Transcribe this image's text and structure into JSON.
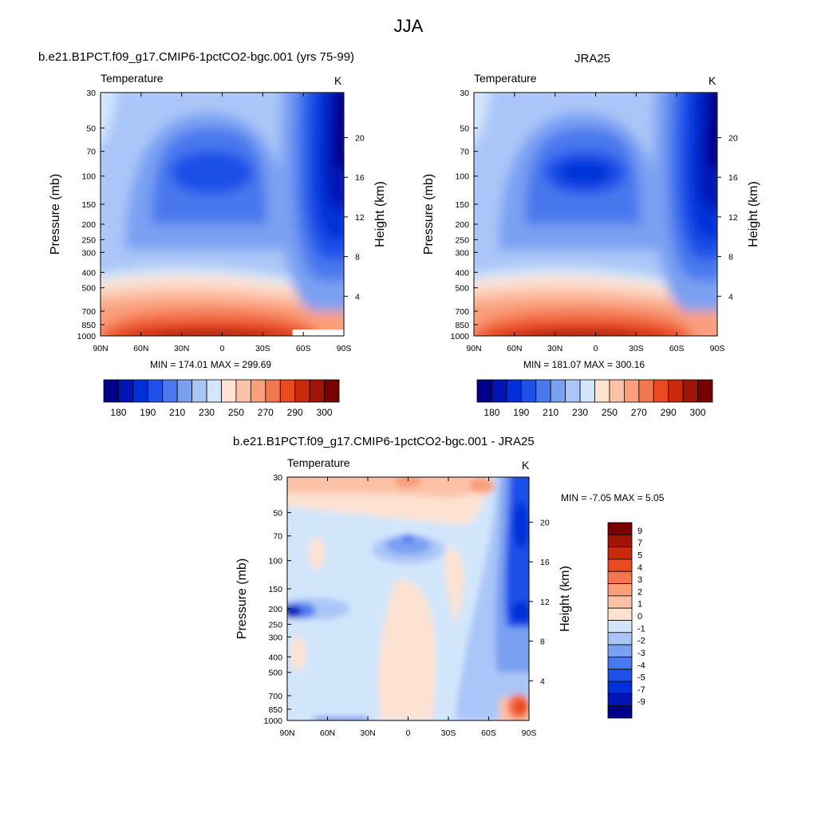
{
  "page_title": "JJA",
  "chart_data": [
    {
      "id": "model",
      "type": "heatmap",
      "title": "b.e21.B1PCT.f09_g17.CMIP6-1pctCO2-bgc.001 (yrs 75-99)",
      "variable": "Temperature",
      "units": "K",
      "xlabel": "",
      "ylabel": "Pressure (mb)",
      "y2label": "Height (km)",
      "x_ticks": [
        "90N",
        "60N",
        "30N",
        "0",
        "30S",
        "60S",
        "90S"
      ],
      "x_range": [
        90,
        -90
      ],
      "y_ticks": [
        30,
        50,
        70,
        100,
        150,
        200,
        250,
        300,
        400,
        500,
        700,
        850,
        1000
      ],
      "y_range": [
        30,
        1000
      ],
      "y_scale": "log",
      "y2_ticks": [
        4,
        8,
        12,
        16,
        20
      ],
      "stats": "MIN = 174.01  MAX = 299.69",
      "min": 174.01,
      "max": 299.69,
      "colorbar_labels": [
        "180",
        "190",
        "210",
        "230",
        "250",
        "270",
        "290",
        "300"
      ],
      "colorbar_levels": [
        180,
        185,
        190,
        200,
        210,
        220,
        230,
        240,
        250,
        260,
        270,
        280,
        290,
        295,
        300
      ]
    },
    {
      "id": "obs",
      "type": "heatmap",
      "title": "JRA25",
      "variable": "Temperature",
      "units": "K",
      "xlabel": "",
      "ylabel": "Pressure (mb)",
      "y2label": "Height (km)",
      "x_ticks": [
        "90N",
        "60N",
        "30N",
        "0",
        "30S",
        "60S",
        "90S"
      ],
      "x_range": [
        90,
        -90
      ],
      "y_ticks": [
        30,
        50,
        70,
        100,
        150,
        200,
        250,
        300,
        400,
        500,
        700,
        850,
        1000
      ],
      "y_range": [
        30,
        1000
      ],
      "y_scale": "log",
      "y2_ticks": [
        4,
        8,
        12,
        16,
        20
      ],
      "stats": "MIN = 181.07  MAX = 300.16",
      "min": 181.07,
      "max": 300.16,
      "colorbar_labels": [
        "180",
        "190",
        "210",
        "230",
        "250",
        "270",
        "290",
        "300"
      ],
      "colorbar_levels": [
        180,
        185,
        190,
        200,
        210,
        220,
        230,
        240,
        250,
        260,
        270,
        280,
        290,
        295,
        300
      ]
    },
    {
      "id": "diff",
      "type": "heatmap",
      "title": "b.e21.B1PCT.f09_g17.CMIP6-1pctCO2-bgc.001 - JRA25",
      "variable": "Temperature",
      "units": "K",
      "xlabel": "",
      "ylabel": "Pressure (mb)",
      "y2label": "Height (km)",
      "x_ticks": [
        "90N",
        "60N",
        "30N",
        "0",
        "30S",
        "60S",
        "90S"
      ],
      "x_range": [
        90,
        -90
      ],
      "y_ticks": [
        30,
        50,
        70,
        100,
        150,
        200,
        250,
        300,
        400,
        500,
        700,
        850,
        1000
      ],
      "y_range": [
        30,
        1000
      ],
      "y_scale": "log",
      "y2_ticks": [
        4,
        8,
        12,
        16,
        20
      ],
      "stats": "MIN =  -7.05  MAX =   5.05",
      "min": -7.05,
      "max": 5.05,
      "colorbar_labels": [
        "9",
        "7",
        "5",
        "4",
        "3",
        "2",
        "1",
        "0",
        "-1",
        "-2",
        "-3",
        "-4",
        "-5",
        "-7",
        "-9"
      ],
      "colorbar_levels": [
        9,
        7,
        5,
        4,
        3,
        2,
        1,
        0,
        -1,
        -2,
        -3,
        -4,
        -5,
        -7,
        -9
      ]
    }
  ],
  "palette": [
    "#00008b",
    "#0016b4",
    "#0030d8",
    "#1e50e8",
    "#4a78ee",
    "#7aa0f2",
    "#aac6f8",
    "#d2e6fb",
    "#fde2d2",
    "#fcc2a8",
    "#fa9e7c",
    "#f4764e",
    "#ea4a20",
    "#c82a0a",
    "#a01406",
    "#7a0000"
  ]
}
